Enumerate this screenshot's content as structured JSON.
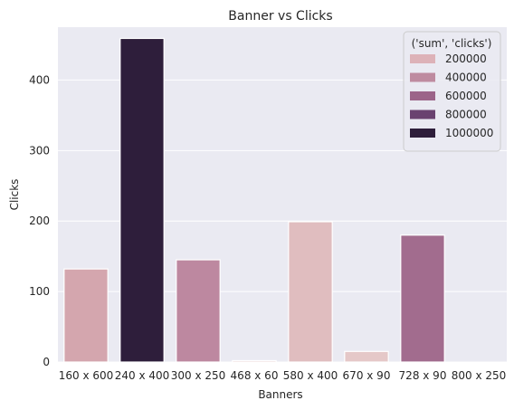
{
  "chart_data": {
    "type": "bar",
    "title": "Banner vs Clicks",
    "xlabel": "Banners",
    "ylabel": "Clicks",
    "categories": [
      "160 x 600",
      "240 x 400",
      "300 x 250",
      "468 x 60",
      "580 x 400",
      "670 x 90",
      "728 x 90",
      "800 x 250"
    ],
    "values": [
      132,
      459,
      145,
      2,
      199,
      15,
      180,
      0
    ],
    "bar_colors": [
      "#d4a6ae",
      "#2e1e3b",
      "#bd88a0",
      "#e6cbcc",
      "#e0bdbf",
      "#e5c8c8",
      "#a26c8e",
      "#ecd5d5"
    ],
    "ylim": [
      0,
      475
    ],
    "yticks": [
      0,
      100,
      200,
      300,
      400
    ],
    "legend": {
      "title": "('sum', 'clicks')",
      "position": "top-right",
      "entries": [
        {
          "label": "200000",
          "color": "#ddb2b8"
        },
        {
          "label": "400000",
          "color": "#be8ba0"
        },
        {
          "label": "600000",
          "color": "#9c6489"
        },
        {
          "label": "800000",
          "color": "#6a4270"
        },
        {
          "label": "1000000",
          "color": "#2e1e3b"
        }
      ]
    },
    "grid": true,
    "background": "#eaeaf2"
  }
}
